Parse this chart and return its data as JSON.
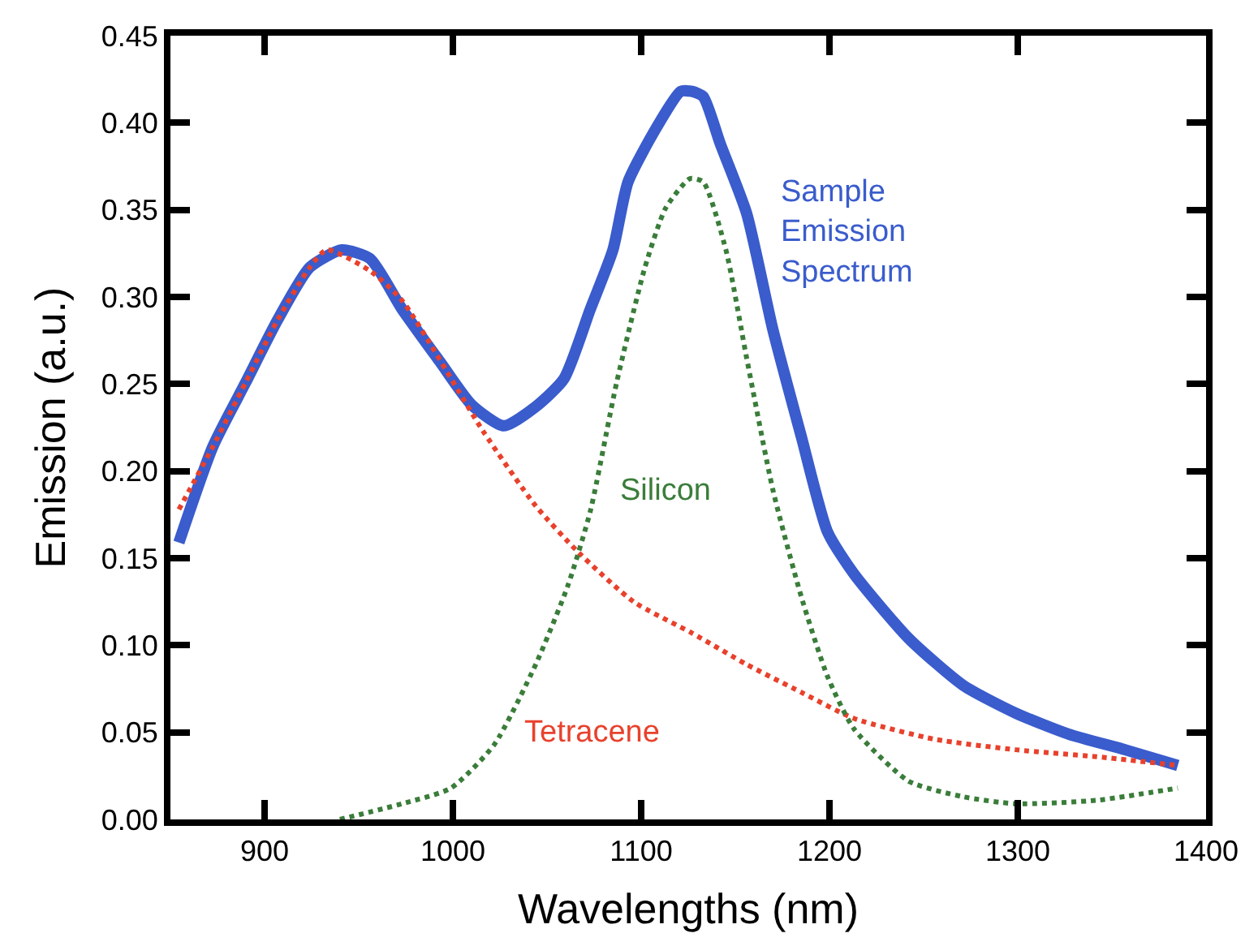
{
  "chart_data": {
    "type": "line",
    "xlabel": "Wavelengths (nm)",
    "ylabel": "Emission (a.u.)",
    "xlim": [
      850,
      1400
    ],
    "xticks": [
      900,
      1000,
      1100,
      1200,
      1300,
      1400
    ],
    "ylim": [
      0,
      0.45
    ],
    "yticks": [
      {
        "value": 0,
        "label": "0.00"
      },
      {
        "value": 0.05,
        "label": "0.05"
      },
      {
        "value": 0.1,
        "label": "0.10"
      },
      {
        "value": 0.15,
        "label": "0.15"
      },
      {
        "value": 0.2,
        "label": "0.20"
      },
      {
        "value": 0.25,
        "label": "0.25"
      },
      {
        "value": 0.3,
        "label": "0.30"
      },
      {
        "value": 0.35,
        "label": "0.35"
      },
      {
        "value": 0.4,
        "label": "0.40"
      },
      {
        "value": 0.45,
        "label": "0.45"
      }
    ],
    "grid": false,
    "legend": false,
    "marker": "none",
    "series": [
      {
        "name": "Sample Emission Spectrum",
        "color": "#3a5ccc",
        "line_style": "solid",
        "x": [
          854.5,
          872.5,
          890,
          907,
          924,
          941,
          956,
          973,
          993,
          1010,
          1027,
          1044,
          1059,
          1073,
          1085,
          1093,
          1108,
          1121,
          1127,
          1133,
          1142,
          1156,
          1170,
          1185,
          1199,
          1213,
          1242,
          1271,
          1299,
          1327,
          1357,
          1385
        ],
        "values": [
          0.159,
          0.214,
          0.251,
          0.287,
          0.317,
          0.327,
          0.322,
          0.293,
          0.263,
          0.238,
          0.226,
          0.237,
          0.253,
          0.293,
          0.327,
          0.366,
          0.397,
          0.418,
          0.418,
          0.415,
          0.388,
          0.348,
          0.281,
          0.22,
          0.165,
          0.141,
          0.104,
          0.077,
          0.061,
          0.049,
          0.04,
          0.031
        ]
      },
      {
        "name": "Tetracene",
        "color": "#e8412c",
        "line_style": "dotted",
        "x": [
          854.5,
          872.5,
          890,
          907,
          924,
          933,
          956,
          973,
          1016,
          1044,
          1067,
          1096,
          1127,
          1156,
          1185,
          1213,
          1256,
          1299,
          1342,
          1385
        ],
        "values": [
          0.178,
          0.214,
          0.251,
          0.287,
          0.317,
          0.327,
          0.315,
          0.298,
          0.223,
          0.18,
          0.153,
          0.125,
          0.107,
          0.089,
          0.073,
          0.058,
          0.046,
          0.04,
          0.036,
          0.031
        ]
      },
      {
        "name": "Silicon",
        "color": "#3a7d3a",
        "line_style": "dotted",
        "x": [
          940,
          973,
          999,
          1022,
          1044,
          1061,
          1073,
          1087,
          1102,
          1113,
          1126,
          1133,
          1145,
          1156,
          1170,
          1185,
          1199,
          1213,
          1242,
          1271,
          1299,
          1342,
          1385
        ],
        "values": [
          0,
          0.009,
          0.018,
          0.043,
          0.089,
          0.134,
          0.177,
          0.251,
          0.317,
          0.351,
          0.368,
          0.366,
          0.327,
          0.265,
          0.189,
          0.128,
          0.082,
          0.052,
          0.022,
          0.013,
          0.009,
          0.011,
          0.018
        ]
      }
    ]
  }
}
